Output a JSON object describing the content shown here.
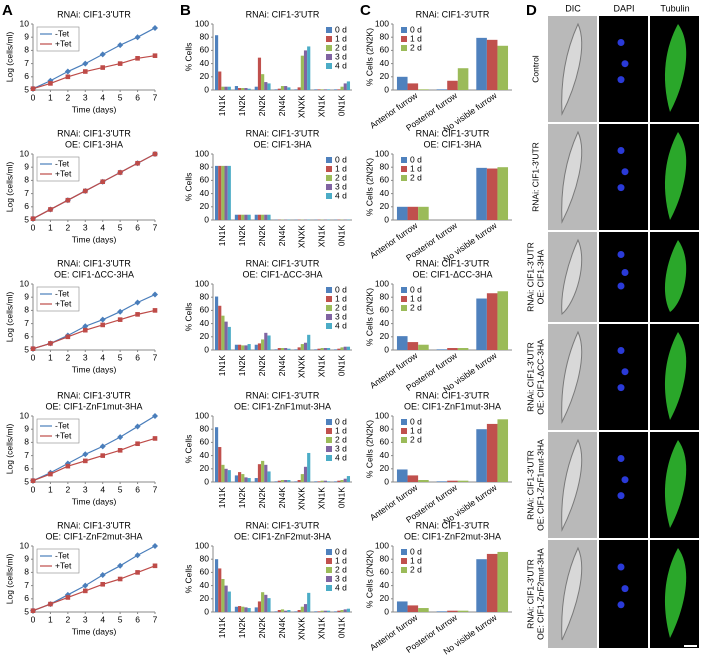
{
  "panels": [
    "A",
    "B",
    "C",
    "D"
  ],
  "micrographs": {
    "columns": [
      "DIC",
      "DAPI",
      "Tubulin"
    ],
    "rows": [
      [
        "Control"
      ],
      [
        "RNAi: CIF1-3'UTR"
      ],
      [
        "RNAi: CIF1-3'UTR",
        "OE: CIF1-3HA"
      ],
      [
        "RNAi: CIF1-3'UTR",
        "OE: CIF1-ΔCC-3HA"
      ],
      [
        "RNAi: CIF1-3'UTR",
        "OE: CIF1-ZnF1mut-3HA"
      ],
      [
        "RNAi: CIF1-3'UTR",
        "OE: CIF1-ZnF2mut-3HA"
      ]
    ]
  },
  "chart_data": [
    {
      "type": "line",
      "title": [
        "RNAi: CIF1-3'UTR"
      ],
      "xlabel": "Time (days)",
      "ylabel": "Log (cells/ml)",
      "x": [
        0,
        1,
        2,
        3,
        4,
        5,
        6,
        7
      ],
      "xlim": [
        0,
        7
      ],
      "xticks": [
        0,
        1,
        2,
        3,
        4,
        5,
        6,
        7
      ],
      "ylim": [
        5,
        10
      ],
      "yticks": [
        5,
        6,
        7,
        8,
        9,
        10
      ],
      "legend": "upper left",
      "series": [
        {
          "name": "-Tet",
          "color": "#4a7ebb",
          "marker": "diamond",
          "values": [
            5.1,
            5.7,
            6.4,
            7.0,
            7.7,
            8.4,
            9.0,
            9.7
          ]
        },
        {
          "name": "+Tet",
          "color": "#be4b48",
          "marker": "square",
          "values": [
            5.1,
            5.5,
            6.0,
            6.4,
            6.7,
            7.0,
            7.4,
            7.6
          ]
        }
      ]
    },
    {
      "type": "bar",
      "title": [
        "RNAi: CIF1-3'UTR"
      ],
      "ylabel": "% Cells",
      "categories": [
        "1N1K",
        "1N2K",
        "2N2K",
        "2N4K",
        "XNXK",
        "XN1K",
        "0N1K"
      ],
      "ylim": [
        0,
        100
      ],
      "yticks": [
        0,
        20,
        40,
        60,
        80,
        100
      ],
      "legend": "upper right",
      "series": [
        {
          "name": "0 d",
          "color": "#4f81bd",
          "values": [
            83,
            6,
            5,
            1,
            1,
            1,
            1
          ]
        },
        {
          "name": "1 d",
          "color": "#c0504d",
          "values": [
            28,
            3,
            49,
            2,
            4,
            1,
            1
          ]
        },
        {
          "name": "2 d",
          "color": "#9bbb59",
          "values": [
            5,
            3,
            24,
            6,
            52,
            1,
            5
          ]
        },
        {
          "name": "3 d",
          "color": "#8064a2",
          "values": [
            5,
            3,
            12,
            6,
            60,
            1,
            10
          ]
        },
        {
          "name": "4 d",
          "color": "#4bacc6",
          "values": [
            5,
            2,
            10,
            4,
            66,
            1,
            13
          ]
        }
      ]
    },
    {
      "type": "bar",
      "title": [
        "RNAi: CIF1-3'UTR"
      ],
      "ylabel": "% Cells (2N2K)",
      "categories": [
        "Anterior furrow",
        "Posterior furrow",
        "No visible furrow"
      ],
      "ylim": [
        0,
        100
      ],
      "yticks": [
        0,
        20,
        40,
        60,
        80,
        100
      ],
      "legend": "upper left",
      "series": [
        {
          "name": "0 d",
          "color": "#4f81bd",
          "values": [
            20,
            1,
            79
          ]
        },
        {
          "name": "1 d",
          "color": "#c0504d",
          "values": [
            10,
            14,
            76
          ]
        },
        {
          "name": "2 d",
          "color": "#9bbb59",
          "values": [
            1,
            33,
            67
          ]
        }
      ]
    },
    {
      "type": "line",
      "title": [
        "RNAi: CIF1-3'UTR",
        "OE: CIF1-3HA"
      ],
      "xlabel": "Time (days)",
      "ylabel": "Log (cells/ml)",
      "x": [
        0,
        1,
        2,
        3,
        4,
        5,
        6,
        7
      ],
      "xlim": [
        0,
        7
      ],
      "xticks": [
        0,
        1,
        2,
        3,
        4,
        5,
        6,
        7
      ],
      "ylim": [
        5,
        10
      ],
      "yticks": [
        5,
        6,
        7,
        8,
        9,
        10
      ],
      "legend": "upper left",
      "series": [
        {
          "name": "-Tet",
          "color": "#4a7ebb",
          "marker": "diamond",
          "values": [
            5.1,
            5.8,
            6.5,
            7.2,
            7.9,
            8.6,
            9.3,
            10.0
          ]
        },
        {
          "name": "+Tet",
          "color": "#be4b48",
          "marker": "square",
          "values": [
            5.1,
            5.8,
            6.5,
            7.2,
            7.9,
            8.6,
            9.3,
            10.0
          ]
        }
      ]
    },
    {
      "type": "bar",
      "title": [
        "RNAi: CIF1-3'UTR",
        "OE: CIF1-3HA"
      ],
      "ylabel": "% Cells",
      "categories": [
        "1N1K",
        "1N2K",
        "2N2K",
        "2N4K",
        "XNXK",
        "XN1K",
        "0N1K"
      ],
      "ylim": [
        0,
        100
      ],
      "yticks": [
        0,
        20,
        40,
        60,
        80,
        100
      ],
      "legend": "upper right",
      "series": [
        {
          "name": "0 d",
          "color": "#4f81bd",
          "values": [
            82,
            8,
            8,
            0.5,
            0.5,
            0.5,
            0.5
          ]
        },
        {
          "name": "1 d",
          "color": "#c0504d",
          "values": [
            82,
            8,
            8,
            0.5,
            0.5,
            0.5,
            0.5
          ]
        },
        {
          "name": "2 d",
          "color": "#9bbb59",
          "values": [
            82,
            8,
            8,
            0.5,
            0.5,
            0.5,
            0.5
          ]
        },
        {
          "name": "3 d",
          "color": "#8064a2",
          "values": [
            82,
            8,
            8,
            0.5,
            0.5,
            0.5,
            0.5
          ]
        },
        {
          "name": "4 d",
          "color": "#4bacc6",
          "values": [
            82,
            8,
            8,
            0.5,
            0.5,
            0.5,
            0.5
          ]
        }
      ]
    },
    {
      "type": "bar",
      "title": [
        "RNAi: CIF1-3'UTR",
        "OE: CIF1-3HA"
      ],
      "ylabel": "% Cells (2N2K)",
      "categories": [
        "Anterior furrow",
        "Posterior furrow",
        "No visible furrow"
      ],
      "ylim": [
        0,
        100
      ],
      "yticks": [
        0,
        20,
        40,
        60,
        80,
        100
      ],
      "legend": "upper left",
      "series": [
        {
          "name": "0 d",
          "color": "#4f81bd",
          "values": [
            20,
            0,
            79
          ]
        },
        {
          "name": "1 d",
          "color": "#c0504d",
          "values": [
            20,
            0,
            78
          ]
        },
        {
          "name": "2 d",
          "color": "#9bbb59",
          "values": [
            20,
            0,
            80
          ]
        }
      ]
    },
    {
      "type": "line",
      "title": [
        "RNAi: CIF1-3'UTR",
        "OE: CIF1-ΔCC-3HA"
      ],
      "xlabel": "Time (days)",
      "ylabel": "Log (cells/ml)",
      "x": [
        0,
        1,
        2,
        3,
        4,
        5,
        6,
        7
      ],
      "xlim": [
        0,
        7
      ],
      "xticks": [
        0,
        1,
        2,
        3,
        4,
        5,
        6,
        7
      ],
      "ylim": [
        5,
        10
      ],
      "yticks": [
        5,
        6,
        7,
        8,
        9,
        10
      ],
      "legend": "upper left",
      "series": [
        {
          "name": "-Tet",
          "color": "#4a7ebb",
          "marker": "diamond",
          "values": [
            5.1,
            5.5,
            6.1,
            6.8,
            7.3,
            7.9,
            8.6,
            9.2
          ]
        },
        {
          "name": "+Tet",
          "color": "#be4b48",
          "marker": "square",
          "values": [
            5.1,
            5.5,
            6.0,
            6.5,
            6.9,
            7.3,
            7.7,
            8.0
          ]
        }
      ]
    },
    {
      "type": "bar",
      "title": [
        "RNAi: CIF1-3'UTR",
        "OE: CIF1-ΔCC-3HA"
      ],
      "ylabel": "% Cells",
      "categories": [
        "1N1K",
        "1N2K",
        "2N2K",
        "2N4K",
        "XNXK",
        "XN1K",
        "0N1K"
      ],
      "ylim": [
        0,
        100
      ],
      "yticks": [
        0,
        20,
        40,
        60,
        80,
        100
      ],
      "legend": "upper right",
      "series": [
        {
          "name": "0 d",
          "color": "#4f81bd",
          "values": [
            81,
            8,
            8,
            1,
            1,
            1,
            1
          ]
        },
        {
          "name": "1 d",
          "color": "#c0504d",
          "values": [
            67,
            8,
            10,
            3,
            4,
            2,
            2
          ]
        },
        {
          "name": "2 d",
          "color": "#9bbb59",
          "values": [
            52,
            7,
            16,
            3,
            9,
            3,
            4
          ]
        },
        {
          "name": "3 d",
          "color": "#8064a2",
          "values": [
            43,
            7,
            26,
            3,
            11,
            3,
            5
          ]
        },
        {
          "name": "4 d",
          "color": "#4bacc6",
          "values": [
            35,
            9,
            22,
            2,
            23,
            3,
            5
          ]
        }
      ]
    },
    {
      "type": "bar",
      "title": [
        "RNAi: CIF1-3'UTR",
        "OE: CIF1-ΔCC-3HA"
      ],
      "ylabel": "% Cells (2N2K)",
      "categories": [
        "Anterior furrow",
        "Posterior furrow",
        "No visible furrow"
      ],
      "ylim": [
        0,
        100
      ],
      "yticks": [
        0,
        20,
        40,
        60,
        80,
        100
      ],
      "legend": "upper left",
      "series": [
        {
          "name": "0 d",
          "color": "#4f81bd",
          "values": [
            21,
            1,
            78
          ]
        },
        {
          "name": "1 d",
          "color": "#c0504d",
          "values": [
            12,
            3,
            86
          ]
        },
        {
          "name": "2 d",
          "color": "#9bbb59",
          "values": [
            8,
            3,
            89
          ]
        }
      ]
    },
    {
      "type": "line",
      "title": [
        "RNAi: CIF1-3'UTR",
        "OE: CIF1-ZnF1mut-3HA"
      ],
      "xlabel": "Time (days)",
      "ylabel": "Log (cells/ml)",
      "x": [
        0,
        1,
        2,
        3,
        4,
        5,
        6,
        7
      ],
      "xlim": [
        0,
        7
      ],
      "xticks": [
        0,
        1,
        2,
        3,
        4,
        5,
        6,
        7
      ],
      "ylim": [
        5,
        10
      ],
      "yticks": [
        5,
        6,
        7,
        8,
        9,
        10
      ],
      "legend": "upper left",
      "series": [
        {
          "name": "-Tet",
          "color": "#4a7ebb",
          "marker": "diamond",
          "values": [
            5.1,
            5.7,
            6.4,
            7.1,
            7.7,
            8.4,
            9.2,
            10.0
          ]
        },
        {
          "name": "+Tet",
          "color": "#be4b48",
          "marker": "square",
          "values": [
            5.1,
            5.6,
            6.2,
            6.6,
            7.0,
            7.4,
            7.9,
            8.3
          ]
        }
      ]
    },
    {
      "type": "bar",
      "title": [
        "RNAi: CIF1-3'UTR",
        "OE: CIF1-ZnF1mut-3HA"
      ],
      "ylabel": "% Cells",
      "categories": [
        "1N1K",
        "1N2K",
        "2N2K",
        "2N4K",
        "XNXK",
        "XN1K",
        "0N1K"
      ],
      "ylim": [
        0,
        100
      ],
      "yticks": [
        0,
        20,
        40,
        60,
        80,
        100
      ],
      "legend": "upper right",
      "series": [
        {
          "name": "0 d",
          "color": "#4f81bd",
          "values": [
            83,
            10,
            6,
            1,
            1,
            1,
            1
          ]
        },
        {
          "name": "1 d",
          "color": "#c0504d",
          "values": [
            53,
            15,
            27,
            2,
            3,
            1,
            2
          ]
        },
        {
          "name": "2 d",
          "color": "#9bbb59",
          "values": [
            26,
            12,
            32,
            3,
            12,
            2,
            3
          ]
        },
        {
          "name": "3 d",
          "color": "#8064a2",
          "values": [
            20,
            7,
            26,
            3,
            23,
            2,
            5
          ]
        },
        {
          "name": "4 d",
          "color": "#4bacc6",
          "values": [
            18,
            6,
            16,
            3,
            44,
            1,
            9
          ]
        }
      ]
    },
    {
      "type": "bar",
      "title": [
        "RNAi: CIF1-3'UTR",
        "OE: CIF1-ZnF1mut-3HA"
      ],
      "ylabel": "% Cells (2N2K)",
      "categories": [
        "Anterior furrow",
        "Posterior furrow",
        "No visible furrow"
      ],
      "ylim": [
        0,
        100
      ],
      "yticks": [
        0,
        20,
        40,
        60,
        80,
        100
      ],
      "legend": "upper left",
      "series": [
        {
          "name": "0 d",
          "color": "#4f81bd",
          "values": [
            19,
            1,
            80
          ]
        },
        {
          "name": "1 d",
          "color": "#c0504d",
          "values": [
            10,
            2,
            88
          ]
        },
        {
          "name": "2 d",
          "color": "#9bbb59",
          "values": [
            3,
            2,
            95
          ]
        }
      ]
    },
    {
      "type": "line",
      "title": [
        "RNAi: CIF1-3'UTR",
        "OE: CIF1-ZnF2mut-3HA"
      ],
      "xlabel": "Time (days)",
      "ylabel": "Log (cells/ml)",
      "x": [
        0,
        1,
        2,
        3,
        4,
        5,
        6,
        7
      ],
      "xlim": [
        0,
        7
      ],
      "xticks": [
        0,
        1,
        2,
        3,
        4,
        5,
        6,
        7
      ],
      "ylim": [
        5,
        10
      ],
      "yticks": [
        5,
        6,
        7,
        8,
        9,
        10
      ],
      "legend": "upper left",
      "series": [
        {
          "name": "-Tet",
          "color": "#4a7ebb",
          "marker": "diamond",
          "values": [
            5.1,
            5.6,
            6.3,
            7.0,
            7.8,
            8.5,
            9.3,
            10.0
          ]
        },
        {
          "name": "+Tet",
          "color": "#be4b48",
          "marker": "square",
          "values": [
            5.1,
            5.6,
            6.1,
            6.6,
            7.1,
            7.5,
            8.0,
            8.5
          ]
        }
      ]
    },
    {
      "type": "bar",
      "title": [
        "RNAi: CIF1-3'UTR",
        "OE: CIF1-ZnF2mut-3HA"
      ],
      "ylabel": "% Cells",
      "categories": [
        "1N1K",
        "1N2K",
        "2N2K",
        "2N4K",
        "XNXK",
        "XN1K",
        "0N1K"
      ],
      "ylim": [
        0,
        100
      ],
      "yticks": [
        0,
        20,
        40,
        60,
        80,
        100
      ],
      "legend": "upper right",
      "series": [
        {
          "name": "0 d",
          "color": "#4f81bd",
          "values": [
            80,
            8,
            7,
            1,
            1,
            1,
            1
          ]
        },
        {
          "name": "1 d",
          "color": "#c0504d",
          "values": [
            66,
            9,
            16,
            3,
            3,
            1,
            2
          ]
        },
        {
          "name": "2 d",
          "color": "#9bbb59",
          "values": [
            50,
            8,
            30,
            4,
            8,
            2,
            3
          ]
        },
        {
          "name": "3 d",
          "color": "#8064a2",
          "values": [
            40,
            7,
            26,
            2,
            12,
            2,
            4
          ]
        },
        {
          "name": "4 d",
          "color": "#4bacc6",
          "values": [
            31,
            6,
            21,
            3,
            29,
            2,
            5
          ]
        }
      ]
    },
    {
      "type": "bar",
      "title": [
        "RNAi: CIF1-3'UTR",
        "OE: CIF1-ZnF2mut-3HA"
      ],
      "ylabel": "% Cells (2N2K)",
      "categories": [
        "Anterior furrow",
        "Posterior furrow",
        "No visible furrow"
      ],
      "ylim": [
        0,
        100
      ],
      "yticks": [
        0,
        20,
        40,
        60,
        80,
        100
      ],
      "legend": "upper left",
      "series": [
        {
          "name": "0 d",
          "color": "#4f81bd",
          "values": [
            16,
            1,
            80
          ]
        },
        {
          "name": "1 d",
          "color": "#c0504d",
          "values": [
            10,
            2,
            88
          ]
        },
        {
          "name": "2 d",
          "color": "#9bbb59",
          "values": [
            6,
            2,
            91
          ]
        }
      ]
    }
  ]
}
